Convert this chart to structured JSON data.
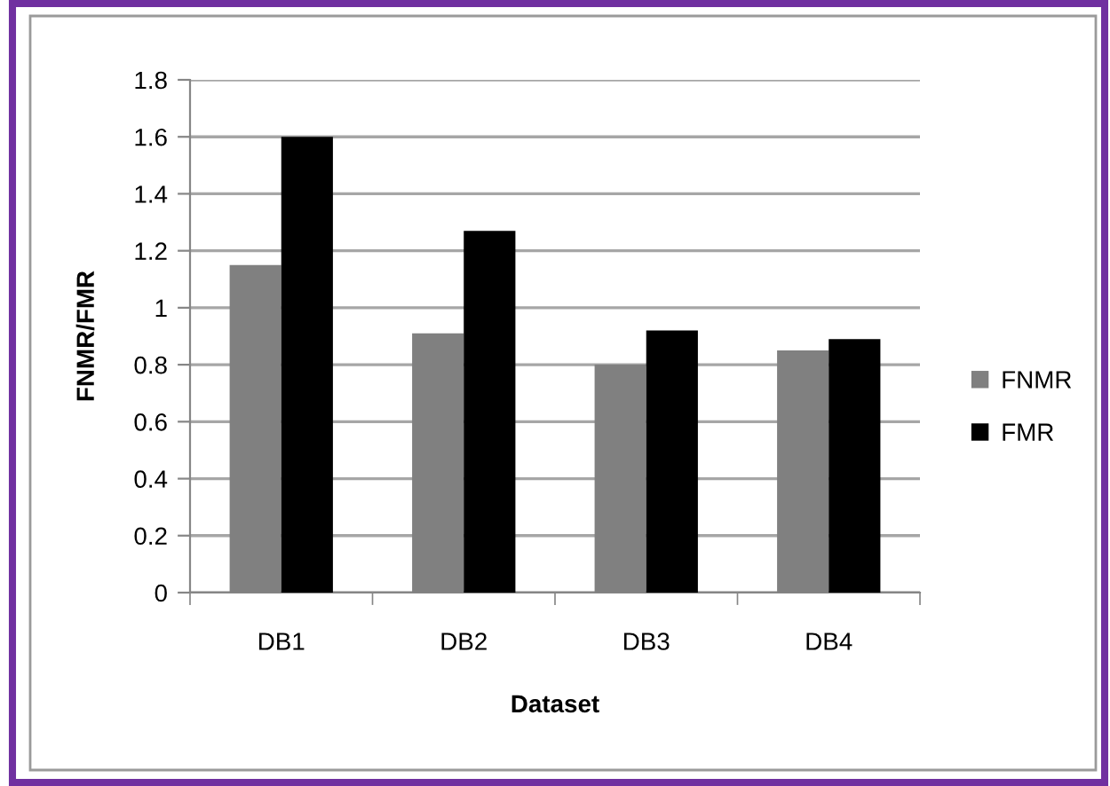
{
  "chart_data": {
    "type": "bar",
    "categories": [
      "DB1",
      "DB2",
      "DB3",
      "DB4"
    ],
    "xlabel": "Dataset",
    "ylabel": "FNMR/FMR",
    "series": [
      {
        "name": "FNMR",
        "color": "#808080",
        "values": [
          1.15,
          0.91,
          0.8,
          0.85
        ]
      },
      {
        "name": "FMR",
        "color": "#000000",
        "values": [
          1.6,
          1.27,
          0.92,
          0.89
        ]
      }
    ],
    "ylim": [
      0,
      1.8
    ],
    "yticks": [
      0,
      0.2,
      0.4,
      0.6,
      0.8,
      1,
      1.2,
      1.4,
      1.6,
      1.8
    ],
    "grid": "y",
    "legend": "right"
  }
}
